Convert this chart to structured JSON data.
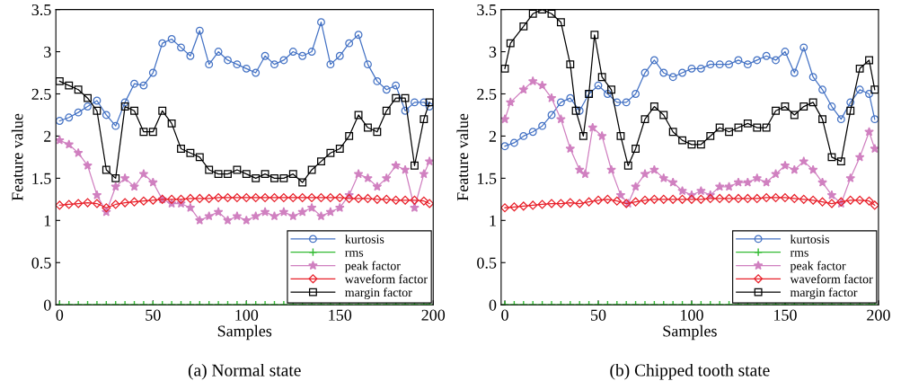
{
  "chart_data": [
    {
      "type": "line",
      "xlabel": "Samples",
      "ylabel": "Feature value",
      "annotations": [
        "(a) Normal state"
      ],
      "xlim": [
        -2,
        200
      ],
      "ylim": [
        0,
        3.5
      ],
      "xticks": [
        0,
        50,
        100,
        150,
        200
      ],
      "yticks": [
        0,
        0.5,
        1,
        1.5,
        2,
        2.5,
        3,
        3.5
      ],
      "grid": false,
      "legend": "bottom right",
      "x": [
        0,
        5,
        10,
        15,
        20,
        25,
        30,
        35,
        40,
        45,
        50,
        55,
        60,
        65,
        70,
        75,
        80,
        85,
        90,
        95,
        100,
        105,
        110,
        115,
        120,
        125,
        130,
        135,
        140,
        145,
        150,
        155,
        160,
        165,
        170,
        175,
        180,
        185,
        190,
        195,
        198
      ],
      "series": [
        {
          "name": "kurtosis",
          "color": "#4472c4",
          "marker": "circle",
          "values": [
            2.18,
            2.22,
            2.28,
            2.35,
            2.42,
            2.25,
            2.12,
            2.4,
            2.62,
            2.6,
            2.75,
            3.1,
            3.15,
            3.05,
            2.95,
            3.25,
            2.85,
            3.0,
            2.9,
            2.85,
            2.8,
            2.75,
            2.95,
            2.85,
            2.9,
            3.0,
            2.95,
            3.0,
            3.35,
            2.85,
            2.95,
            3.1,
            3.2,
            2.85,
            2.65,
            2.55,
            2.6,
            2.3,
            2.4,
            2.4,
            2.35
          ]
        },
        {
          "name": "rms",
          "color": "#33bb33",
          "marker": "cross",
          "values": [
            0,
            0,
            0,
            0,
            0,
            0,
            0,
            0,
            0,
            0,
            0,
            0,
            0,
            0,
            0,
            0,
            0,
            0,
            0,
            0,
            0,
            0,
            0,
            0,
            0,
            0,
            0,
            0,
            0,
            0,
            0,
            0,
            0,
            0,
            0,
            0,
            0,
            0,
            0,
            0,
            0
          ]
        },
        {
          "name": "peak factor",
          "color": "#d080c0",
          "marker": "star",
          "values": [
            1.95,
            1.9,
            1.8,
            1.65,
            1.3,
            1.1,
            1.4,
            1.5,
            1.4,
            1.55,
            1.45,
            1.25,
            1.2,
            1.2,
            1.15,
            1.0,
            1.05,
            1.1,
            1.0,
            1.05,
            1.0,
            1.05,
            1.1,
            1.05,
            1.1,
            1.05,
            1.1,
            1.15,
            1.05,
            1.1,
            1.15,
            1.3,
            1.55,
            1.5,
            1.4,
            1.5,
            1.65,
            1.6,
            1.15,
            1.55,
            1.7
          ]
        },
        {
          "name": "waveform factor",
          "color": "#e8202a",
          "marker": "diamond",
          "values": [
            1.18,
            1.19,
            1.2,
            1.21,
            1.2,
            1.15,
            1.19,
            1.21,
            1.22,
            1.23,
            1.24,
            1.25,
            1.25,
            1.25,
            1.26,
            1.26,
            1.26,
            1.27,
            1.27,
            1.27,
            1.27,
            1.27,
            1.27,
            1.27,
            1.27,
            1.27,
            1.27,
            1.27,
            1.27,
            1.27,
            1.27,
            1.26,
            1.26,
            1.26,
            1.25,
            1.25,
            1.24,
            1.24,
            1.24,
            1.23,
            1.2
          ]
        },
        {
          "name": "margin factor",
          "color": "#000000",
          "marker": "square",
          "values": [
            2.65,
            2.6,
            2.55,
            2.45,
            2.3,
            1.6,
            1.5,
            2.35,
            2.3,
            2.05,
            2.05,
            2.3,
            2.15,
            1.85,
            1.8,
            1.75,
            1.6,
            1.55,
            1.55,
            1.6,
            1.55,
            1.5,
            1.55,
            1.5,
            1.5,
            1.55,
            1.45,
            1.6,
            1.7,
            1.8,
            1.85,
            2.0,
            2.25,
            2.1,
            2.05,
            2.3,
            2.45,
            2.45,
            1.65,
            2.2,
            2.4
          ]
        }
      ]
    },
    {
      "type": "line",
      "xlabel": "Samples",
      "ylabel": "Feature value",
      "annotations": [
        "(b) Chipped tooth state"
      ],
      "xlim": [
        -2,
        200
      ],
      "ylim": [
        0,
        3.5
      ],
      "xticks": [
        0,
        50,
        100,
        150,
        200
      ],
      "yticks": [
        0,
        0.5,
        1,
        1.5,
        2,
        2.5,
        3,
        3.5
      ],
      "grid": false,
      "legend": "bottom right",
      "x": [
        0,
        5,
        10,
        15,
        20,
        25,
        30,
        35,
        40,
        45,
        50,
        55,
        60,
        65,
        70,
        75,
        80,
        85,
        90,
        95,
        100,
        105,
        110,
        115,
        120,
        125,
        130,
        135,
        140,
        145,
        150,
        155,
        160,
        165,
        170,
        175,
        180,
        185,
        190,
        195,
        198
      ],
      "series": [
        {
          "name": "kurtosis",
          "color": "#4472c4",
          "marker": "circle",
          "values": [
            1.88,
            1.92,
            2.0,
            2.05,
            2.12,
            2.25,
            2.4,
            2.45,
            2.3,
            2.5,
            2.6,
            2.5,
            2.4,
            2.4,
            2.5,
            2.75,
            2.9,
            2.75,
            2.7,
            2.75,
            2.8,
            2.8,
            2.85,
            2.85,
            2.85,
            2.9,
            2.85,
            2.9,
            2.95,
            2.9,
            3.0,
            2.75,
            3.05,
            2.7,
            2.55,
            2.35,
            2.2,
            2.4,
            2.55,
            2.5,
            2.2
          ]
        },
        {
          "name": "rms",
          "color": "#33bb33",
          "marker": "cross",
          "values": [
            0,
            0,
            0,
            0,
            0,
            0,
            0,
            0,
            0,
            0,
            0,
            0,
            0,
            0,
            0,
            0,
            0,
            0,
            0,
            0,
            0,
            0,
            0,
            0,
            0,
            0,
            0,
            0,
            0,
            0,
            0,
            0,
            0,
            0,
            0,
            0,
            0,
            0,
            0,
            0,
            0
          ]
        },
        {
          "name": "peak factor",
          "color": "#d080c0",
          "marker": "star",
          "x": [
            0,
            3,
            10,
            15,
            20,
            25,
            30,
            35,
            40,
            43,
            47,
            52,
            57,
            62,
            66,
            70,
            75,
            80,
            85,
            90,
            95,
            100,
            105,
            110,
            115,
            120,
            125,
            130,
            135,
            140,
            145,
            150,
            155,
            160,
            165,
            170,
            175,
            180,
            185,
            190,
            195,
            198
          ],
          "values": [
            2.2,
            2.4,
            2.55,
            2.65,
            2.6,
            2.45,
            2.2,
            1.85,
            1.6,
            1.55,
            2.1,
            2.0,
            1.6,
            1.3,
            1.2,
            1.4,
            1.55,
            1.6,
            1.5,
            1.45,
            1.35,
            1.3,
            1.35,
            1.3,
            1.4,
            1.4,
            1.45,
            1.45,
            1.5,
            1.45,
            1.55,
            1.65,
            1.6,
            1.7,
            1.6,
            1.45,
            1.3,
            1.2,
            1.5,
            1.75,
            2.05,
            1.85
          ]
        },
        {
          "name": "waveform factor",
          "color": "#e8202a",
          "marker": "diamond",
          "values": [
            1.15,
            1.16,
            1.17,
            1.18,
            1.19,
            1.2,
            1.2,
            1.21,
            1.2,
            1.22,
            1.24,
            1.25,
            1.23,
            1.2,
            1.22,
            1.24,
            1.25,
            1.25,
            1.25,
            1.25,
            1.25,
            1.25,
            1.26,
            1.26,
            1.26,
            1.26,
            1.26,
            1.26,
            1.27,
            1.27,
            1.27,
            1.26,
            1.25,
            1.24,
            1.22,
            1.2,
            1.22,
            1.24,
            1.24,
            1.23,
            1.18
          ]
        },
        {
          "name": "margin factor",
          "color": "#000000",
          "marker": "square",
          "x": [
            0,
            3,
            10,
            15,
            20,
            25,
            30,
            35,
            38,
            42,
            45,
            48,
            52,
            57,
            62,
            66,
            70,
            75,
            80,
            85,
            90,
            95,
            100,
            105,
            110,
            115,
            120,
            125,
            130,
            135,
            140,
            145,
            150,
            155,
            160,
            165,
            170,
            175,
            180,
            185,
            190,
            195,
            198
          ],
          "values": [
            2.8,
            3.1,
            3.3,
            3.45,
            3.5,
            3.45,
            3.35,
            2.85,
            2.3,
            2.0,
            2.5,
            3.2,
            2.7,
            2.55,
            2.0,
            1.65,
            1.85,
            2.2,
            2.35,
            2.25,
            2.05,
            1.95,
            1.9,
            1.9,
            2.0,
            2.1,
            2.05,
            2.1,
            2.15,
            2.1,
            2.1,
            2.3,
            2.35,
            2.25,
            2.35,
            2.4,
            2.2,
            1.75,
            1.7,
            2.3,
            2.8,
            2.9,
            2.55
          ]
        }
      ]
    }
  ]
}
